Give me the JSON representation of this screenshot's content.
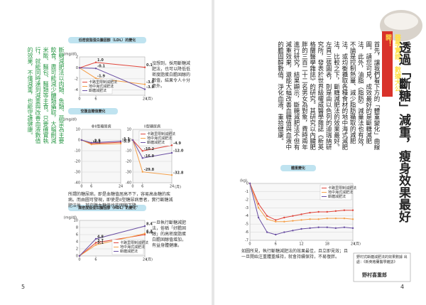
{
  "right_page": {
    "banner": "醫學實證，數據大公開！",
    "title": "透過「斷糖」減重，瘦身效果最好",
    "body": "首先，讓我們看下方的「體重變化」曲線圖。請您可見，成效最好的是斷糖減肥法，此外，油脂（脂肪）減量法也有效，不論是控制熱量、減少脂肪攝取的減肥法，或均衡攝取各種食材的地中海式減肥法，比較之下，斷糖減肥法的效果最好。左頁三張圖表，則是由以色列的迪瑞納研究所，發表於世界級權威醫學雜誌《新英格蘭醫學雜誌》的研究。其研究以內臟肥胖的三百二十二名男女為對象，費時兩年進行研究，結果顯示，斷糖減肥法不但有減重效果，還能大幅改善血糖值與血液中的膽固醇數值，淨化血液，重拾健康。",
    "weight_chart": {
      "type": "line",
      "title": "體重變化",
      "y_label": "(kg)",
      "x_label": "(月)",
      "x": [
        0,
        2,
        4,
        6,
        8,
        10,
        12,
        14,
        16,
        18,
        20,
        22,
        24
      ],
      "xlim": [
        0,
        24
      ],
      "xticks": [
        0,
        6,
        12,
        18,
        24
      ],
      "ylim": [
        -7,
        0
      ],
      "yticks": [
        0,
        -1,
        -2,
        -3,
        -4,
        -5,
        -6,
        -7
      ],
      "grid": true,
      "legend": "upper-right",
      "series": [
        {
          "name": "卡路里限制減肥法",
          "color": "#e0463c",
          "values": [
            0,
            -2.5,
            -4.0,
            -4.5,
            -4.2,
            -4.0,
            -3.8,
            -3.6,
            -3.5,
            -3.5,
            -3.4,
            -3.3,
            -3.3
          ]
        },
        {
          "name": "地中海式減肥法",
          "color": "#f5a04a",
          "values": [
            0,
            -3.0,
            -4.4,
            -4.7,
            -4.7,
            -4.6,
            -4.5,
            -4.4,
            -4.4,
            -4.3,
            -4.3,
            -4.3,
            -4.4
          ]
        },
        {
          "name": "斷糖減肥法",
          "color": "#6a4fa3",
          "values": [
            0,
            -4.2,
            -6.0,
            -6.3,
            -6.0,
            -5.8,
            -5.6,
            -5.5,
            -5.4,
            -5.4,
            -5.5,
            -5.4,
            -5.5
          ]
        }
      ]
    },
    "caption": "如圖所見，執行斷糖減肥法的效果最佳，且立即見效；且一旦開始注重體重維持，就會持續保持，不易復胖。",
    "source": "野村式斷糖減肥法的效果數據 出處：《新英格蘭醫學雜誌》",
    "author": "野村喜重郎",
    "page_number": "4"
  },
  "left_page": {
    "side_note": "斷糖減肥法以肉類、魚類、蔬菜為主要飲食，盡可能減少醣類攝取，大幅刪減米飯、麵包、麵類等主食。只要確實執行，就能同時達到減重與改善血液數值的效果，不僅減重，也能守護健康。",
    "ldl_chart": {
      "type": "line",
      "title": "低密度脂蛋白膽固醇（LDL）的變化",
      "y_label": "(mg/dl)",
      "x_label": "(月)",
      "x": [
        0,
        6,
        24
      ],
      "xlim": [
        0,
        24
      ],
      "xticks": [
        0,
        6,
        24
      ],
      "ylim": [
        -5,
        2
      ],
      "yticks": [
        2,
        0,
        -2,
        -4
      ],
      "grid": true,
      "legend": "lower-left",
      "series": [
        {
          "name": "卡路里限制減肥法",
          "color": "#e0463c",
          "values": [
            0,
            1.0,
            0.1
          ],
          "value_labels": [
            null,
            "1.0",
            "0.1"
          ]
        },
        {
          "name": "地中海式減肥法",
          "color": "#f5a04a",
          "values": [
            0,
            -1.9,
            -3.0
          ],
          "value_labels": [
            null,
            "-1.9",
            "-3.0"
          ]
        },
        {
          "name": "斷糖減肥法",
          "color": "#6a4fa3",
          "values": [
            0,
            -0.1,
            -3.9
          ],
          "value_labels": [
            null,
            "-0.1",
            "-3.9"
          ]
        }
      ]
    },
    "ldl_note": "沒想到，採用斷糖減肥法，也可以降低低密度脂蛋白膽固醇的數值，結果令人十分意外。",
    "glucose_chart": {
      "title": "空腹血糖值變化",
      "y_label": "(mg/dl)",
      "x_label": "(月)",
      "panels": [
        {
          "type": "line",
          "subtitle": "非II型糖尿病",
          "x": [
            0,
            6,
            24
          ],
          "xlim": [
            0,
            24
          ],
          "xticks": [
            0,
            6,
            24
          ],
          "ylim": [
            -40,
            10
          ],
          "yticks": [
            10,
            0,
            -10,
            -20,
            -30,
            -40
          ],
          "grid": true,
          "series": [
            {
              "color": "#e0463c",
              "values": [
                0,
                -3.3,
                -2.1
              ],
              "value_labels": [
                null,
                "-3.3",
                "-2.1"
              ]
            },
            {
              "color": "#f5a04a",
              "values": [
                0,
                -4.1,
                -3.3
              ],
              "value_labels": [
                null,
                "-4.1",
                "-3.3"
              ]
            },
            {
              "color": "#6a4fa3",
              "values": [
                0,
                -2.5,
                -1.1
              ],
              "value_labels": [
                null,
                "-2.5",
                "-1.1"
              ]
            }
          ]
        },
        {
          "type": "line",
          "subtitle": "II型糖尿病",
          "x": [
            0,
            6,
            24
          ],
          "xlim": [
            0,
            24
          ],
          "xticks": [
            0,
            6,
            24
          ],
          "ylim": [
            -40,
            10
          ],
          "yticks": [
            10,
            0,
            -10,
            -20,
            -30,
            -40
          ],
          "grid": true,
          "legend": "upper-right",
          "series": [
            {
              "name": "卡路里限制減肥法",
              "color": "#e0463c",
              "values": [
                0,
                -10.2,
                -4.9
              ],
              "value_labels": [
                null,
                "-10.2",
                "-4.9"
              ]
            },
            {
              "name": "地中海式減肥法",
              "color": "#f5a04a",
              "values": [
                0,
                -29.8,
                -32.8
              ],
              "value_labels": [
                null,
                "-29.8",
                "-32.8"
              ]
            },
            {
              "name": "斷糖減肥法",
              "color": "#6a4fa3",
              "values": [
                0,
                -16.9,
                -12.0
              ],
              "value_labels": [
                null,
                "-16.9",
                "-12.0"
              ]
            }
          ]
        }
      ]
    },
    "glucose_caption": "所謂的糖尿病，即是血糖值居高不下，容易高血糖的疾病。而由圖可發現，即使是II型糖尿病患者，實行斷糖減肥法後，其空腹血糖值也能明顯下降。",
    "hdl_chart": {
      "type": "line",
      "title": "高密度脂蛋白膽固醇（HDL）的變化",
      "y_label": "(mg/dl)",
      "x_label": "(月)",
      "x": [
        0,
        6,
        24
      ],
      "xlim": [
        0,
        24
      ],
      "xticks": [
        0,
        6,
        24
      ],
      "ylim": [
        0,
        10
      ],
      "yticks": [
        0,
        2,
        4,
        6,
        8,
        10
      ],
      "grid": true,
      "legend": "lower-right",
      "series": [
        {
          "name": "卡路里限制減肥法",
          "color": "#e0463c",
          "values": [
            0,
            3.7,
            6.0
          ],
          "value_labels": [
            null,
            "3.7",
            "6.0"
          ]
        },
        {
          "name": "地中海式減肥法",
          "color": "#f5a04a",
          "values": [
            0,
            3.1,
            6.3
          ],
          "value_labels": [
            null,
            "3.1",
            "6.3"
          ]
        },
        {
          "name": "斷糖減肥法",
          "color": "#6a4fa3",
          "values": [
            0,
            4.8,
            8.4
          ],
          "value_labels": [
            null,
            "4.8",
            "8.4"
          ]
        }
      ]
    },
    "hdl_note": "一旦執行斷糖減肥法，俗稱「好膽固醇」的高密度脂蛋白膽固醇值增加，有益身體健康。",
    "page_number": "5"
  }
}
